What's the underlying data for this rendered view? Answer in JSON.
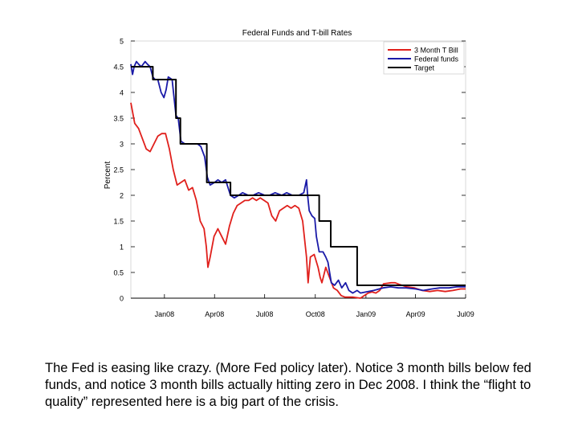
{
  "chart_data": {
    "type": "line",
    "title": "Federal Funds and T-bill Rates",
    "ylabel": "Percent",
    "xlabel": "",
    "ylim": [
      0,
      5
    ],
    "xlim": [
      "2007-11-01",
      "2009-07-01"
    ],
    "grid": false,
    "legend_position": "top-right",
    "y_ticks": [
      {
        "value": 0,
        "label": "0"
      },
      {
        "value": 0.5,
        "label": "0.5"
      },
      {
        "value": 1,
        "label": "1"
      },
      {
        "value": 1.5,
        "label": "1.5"
      },
      {
        "value": 2,
        "label": "2"
      },
      {
        "value": 2.5,
        "label": "2.5"
      },
      {
        "value": 3,
        "label": "3"
      },
      {
        "value": 3.5,
        "label": "3.5"
      },
      {
        "value": 4,
        "label": "4"
      },
      {
        "value": 4.5,
        "label": "4.5"
      },
      {
        "value": 5,
        "label": "5"
      }
    ],
    "x_ticks": [
      {
        "date": "2008-01-01",
        "label": "Jan08"
      },
      {
        "date": "2008-04-01",
        "label": "Apr08"
      },
      {
        "date": "2008-07-01",
        "label": "Jul08"
      },
      {
        "date": "2008-10-01",
        "label": "Oct08"
      },
      {
        "date": "2009-01-01",
        "label": "Jan09"
      },
      {
        "date": "2009-04-01",
        "label": "Apr09"
      },
      {
        "date": "2009-07-01",
        "label": "Jul09"
      }
    ],
    "series": [
      {
        "name": "3 Month T Bill",
        "color": "#e0201c",
        "style": "line",
        "points": [
          [
            "2007-11-01",
            3.8
          ],
          [
            "2007-11-08",
            3.4
          ],
          [
            "2007-11-15",
            3.3
          ],
          [
            "2007-11-22",
            3.1
          ],
          [
            "2007-11-29",
            2.9
          ],
          [
            "2007-12-06",
            2.85
          ],
          [
            "2007-12-13",
            3.0
          ],
          [
            "2007-12-20",
            3.15
          ],
          [
            "2007-12-27",
            3.2
          ],
          [
            "2008-01-03",
            3.2
          ],
          [
            "2008-01-10",
            2.9
          ],
          [
            "2008-01-17",
            2.5
          ],
          [
            "2008-01-24",
            2.2
          ],
          [
            "2008-01-31",
            2.25
          ],
          [
            "2008-02-07",
            2.3
          ],
          [
            "2008-02-14",
            2.1
          ],
          [
            "2008-02-21",
            2.15
          ],
          [
            "2008-02-28",
            1.9
          ],
          [
            "2008-03-06",
            1.5
          ],
          [
            "2008-03-13",
            1.35
          ],
          [
            "2008-03-17",
            1.0
          ],
          [
            "2008-03-20",
            0.6
          ],
          [
            "2008-03-24",
            0.8
          ],
          [
            "2008-03-31",
            1.2
          ],
          [
            "2008-04-07",
            1.35
          ],
          [
            "2008-04-14",
            1.2
          ],
          [
            "2008-04-21",
            1.05
          ],
          [
            "2008-04-28",
            1.4
          ],
          [
            "2008-05-05",
            1.65
          ],
          [
            "2008-05-12",
            1.8
          ],
          [
            "2008-05-19",
            1.85
          ],
          [
            "2008-05-26",
            1.9
          ],
          [
            "2008-06-02",
            1.9
          ],
          [
            "2008-06-09",
            1.95
          ],
          [
            "2008-06-16",
            1.9
          ],
          [
            "2008-06-23",
            1.95
          ],
          [
            "2008-06-30",
            1.9
          ],
          [
            "2008-07-07",
            1.85
          ],
          [
            "2008-07-14",
            1.6
          ],
          [
            "2008-07-21",
            1.5
          ],
          [
            "2008-07-28",
            1.7
          ],
          [
            "2008-08-04",
            1.75
          ],
          [
            "2008-08-11",
            1.8
          ],
          [
            "2008-08-18",
            1.75
          ],
          [
            "2008-08-25",
            1.8
          ],
          [
            "2008-09-01",
            1.75
          ],
          [
            "2008-09-08",
            1.5
          ],
          [
            "2008-09-15",
            0.8
          ],
          [
            "2008-09-18",
            0.3
          ],
          [
            "2008-09-22",
            0.8
          ],
          [
            "2008-09-29",
            0.85
          ],
          [
            "2008-10-06",
            0.6
          ],
          [
            "2008-10-10",
            0.4
          ],
          [
            "2008-10-13",
            0.3
          ],
          [
            "2008-10-20",
            0.6
          ],
          [
            "2008-10-27",
            0.4
          ],
          [
            "2008-11-03",
            0.2
          ],
          [
            "2008-11-10",
            0.15
          ],
          [
            "2008-11-17",
            0.05
          ],
          [
            "2008-11-24",
            0.02
          ],
          [
            "2008-12-08",
            0.02
          ],
          [
            "2008-12-22",
            0.0
          ],
          [
            "2008-12-29",
            0.05
          ],
          [
            "2009-01-05",
            0.1
          ],
          [
            "2009-01-12",
            0.12
          ],
          [
            "2009-01-19",
            0.1
          ],
          [
            "2009-01-26",
            0.15
          ],
          [
            "2009-02-02",
            0.28
          ],
          [
            "2009-02-16",
            0.3
          ],
          [
            "2009-02-23",
            0.3
          ],
          [
            "2009-03-02",
            0.27
          ],
          [
            "2009-03-16",
            0.22
          ],
          [
            "2009-03-30",
            0.2
          ],
          [
            "2009-04-13",
            0.15
          ],
          [
            "2009-04-27",
            0.13
          ],
          [
            "2009-05-11",
            0.15
          ],
          [
            "2009-05-25",
            0.13
          ],
          [
            "2009-06-08",
            0.15
          ],
          [
            "2009-06-22",
            0.18
          ],
          [
            "2009-07-01",
            0.18
          ]
        ]
      },
      {
        "name": "Federal funds",
        "color": "#1a1aa8",
        "style": "line",
        "points": [
          [
            "2007-11-01",
            4.55
          ],
          [
            "2007-11-04",
            4.35
          ],
          [
            "2007-11-07",
            4.5
          ],
          [
            "2007-11-11",
            4.6
          ],
          [
            "2007-11-15",
            4.55
          ],
          [
            "2007-11-20",
            4.5
          ],
          [
            "2007-11-27",
            4.6
          ],
          [
            "2007-12-01",
            4.55
          ],
          [
            "2007-12-06",
            4.5
          ],
          [
            "2007-12-11",
            4.3
          ],
          [
            "2007-12-15",
            4.25
          ],
          [
            "2007-12-20",
            4.25
          ],
          [
            "2007-12-26",
            4.0
          ],
          [
            "2007-12-31",
            3.9
          ],
          [
            "2008-01-04",
            4.05
          ],
          [
            "2008-01-08",
            4.3
          ],
          [
            "2008-01-15",
            4.25
          ],
          [
            "2008-01-22",
            3.55
          ],
          [
            "2008-01-26",
            3.5
          ],
          [
            "2008-01-31",
            3.05
          ],
          [
            "2008-02-07",
            3.0
          ],
          [
            "2008-02-15",
            3.0
          ],
          [
            "2008-02-21",
            3.0
          ],
          [
            "2008-03-01",
            3.0
          ],
          [
            "2008-03-07",
            2.95
          ],
          [
            "2008-03-14",
            2.75
          ],
          [
            "2008-03-19",
            2.35
          ],
          [
            "2008-03-24",
            2.2
          ],
          [
            "2008-04-01",
            2.25
          ],
          [
            "2008-04-07",
            2.3
          ],
          [
            "2008-04-14",
            2.25
          ],
          [
            "2008-04-21",
            2.3
          ],
          [
            "2008-04-30",
            2.0
          ],
          [
            "2008-05-07",
            1.95
          ],
          [
            "2008-05-15",
            2.0
          ],
          [
            "2008-05-22",
            2.05
          ],
          [
            "2008-06-01",
            2.0
          ],
          [
            "2008-06-10",
            2.0
          ],
          [
            "2008-06-20",
            2.05
          ],
          [
            "2008-07-01",
            2.0
          ],
          [
            "2008-07-10",
            2.0
          ],
          [
            "2008-07-20",
            2.05
          ],
          [
            "2008-08-01",
            2.0
          ],
          [
            "2008-08-10",
            2.05
          ],
          [
            "2008-08-20",
            2.0
          ],
          [
            "2008-09-01",
            2.0
          ],
          [
            "2008-09-10",
            2.05
          ],
          [
            "2008-09-15",
            2.3
          ],
          [
            "2008-09-17",
            2.0
          ],
          [
            "2008-09-20",
            1.7
          ],
          [
            "2008-09-25",
            1.6
          ],
          [
            "2008-09-30",
            1.55
          ],
          [
            "2008-10-03",
            1.2
          ],
          [
            "2008-10-08",
            0.9
          ],
          [
            "2008-10-15",
            0.9
          ],
          [
            "2008-10-20",
            0.8
          ],
          [
            "2008-10-24",
            0.7
          ],
          [
            "2008-10-30",
            0.3
          ],
          [
            "2008-11-05",
            0.25
          ],
          [
            "2008-11-12",
            0.35
          ],
          [
            "2008-11-18",
            0.2
          ],
          [
            "2008-11-25",
            0.3
          ],
          [
            "2008-12-01",
            0.15
          ],
          [
            "2008-12-08",
            0.1
          ],
          [
            "2008-12-16",
            0.15
          ],
          [
            "2008-12-22",
            0.1
          ],
          [
            "2009-01-01",
            0.12
          ],
          [
            "2009-01-15",
            0.15
          ],
          [
            "2009-02-01",
            0.2
          ],
          [
            "2009-02-15",
            0.22
          ],
          [
            "2009-03-01",
            0.2
          ],
          [
            "2009-03-15",
            0.2
          ],
          [
            "2009-04-01",
            0.18
          ],
          [
            "2009-04-15",
            0.15
          ],
          [
            "2009-05-01",
            0.18
          ],
          [
            "2009-05-15",
            0.2
          ],
          [
            "2009-06-01",
            0.2
          ],
          [
            "2009-06-15",
            0.22
          ],
          [
            "2009-07-01",
            0.22
          ]
        ]
      },
      {
        "name": "Target",
        "color": "#000000",
        "style": "step",
        "points": [
          [
            "2007-11-01",
            4.5
          ],
          [
            "2007-12-11",
            4.25
          ],
          [
            "2008-01-22",
            3.5
          ],
          [
            "2008-01-30",
            3.0
          ],
          [
            "2008-03-18",
            2.25
          ],
          [
            "2008-04-30",
            2.0
          ],
          [
            "2008-10-08",
            1.5
          ],
          [
            "2008-10-29",
            1.0
          ],
          [
            "2008-12-16",
            0.25
          ],
          [
            "2009-07-01",
            0.25
          ]
        ]
      }
    ]
  },
  "caption": "The Fed is easing like crazy. (More Fed policy later). Notice 3 month bills below fed funds, and notice 3 month bills actually hitting zero in Dec 2008. I think the “flight to quality” represented here is a big part of the crisis."
}
